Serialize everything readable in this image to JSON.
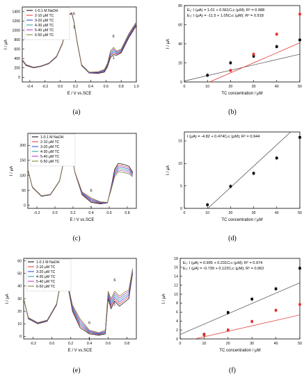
{
  "panels": [
    {
      "caption": "(a)",
      "type": "line",
      "xlabel": "E / V vs.SCE",
      "ylabel": "I / μA",
      "xlim": [
        -0.5,
        1.0
      ],
      "ylim": [
        -100,
        1500
      ],
      "xticks": [
        "-0.4",
        "-0.2",
        "0.0",
        "0.2",
        "0.4",
        "0.6",
        "0.8",
        "1.0"
      ],
      "yticks": [
        "0",
        "200",
        "400",
        "600",
        "800",
        "1000",
        "1200",
        "1400"
      ],
      "legend": [
        "1-0.1 M NaOH",
        "2-10 μM TC",
        "3-20 μM TC",
        "4-30 μM TC",
        "5-40 μM TC",
        "6-50 μM TC"
      ],
      "colors": [
        "#000000",
        "#e0302b",
        "#2b3be0",
        "#1a9a9a",
        "#b02cc0",
        "#7a7a20"
      ],
      "annotations": [
        "6",
        "1",
        "6",
        "1"
      ],
      "series": [
        {
          "name": "1-0.1 M NaOH",
          "x": [
            -0.5,
            -0.45,
            -0.35,
            -0.25,
            -0.15,
            -0.05,
            0.03,
            0.08,
            0.12,
            0.15,
            0.18,
            0.22,
            0.28,
            0.38,
            0.5,
            0.58,
            0.62,
            0.66,
            0.7,
            0.74,
            0.8,
            0.9,
            1.0
          ],
          "y": [
            360,
            250,
            200,
            230,
            290,
            430,
            720,
            1050,
            1330,
            1360,
            1180,
            760,
            250,
            90,
            80,
            110,
            220,
            420,
            480,
            470,
            520,
            840,
            1100
          ]
        },
        {
          "name": "6-50 μM TC",
          "x": [
            -0.5,
            -0.45,
            -0.35,
            -0.25,
            -0.15,
            -0.05,
            0.03,
            0.08,
            0.12,
            0.15,
            0.18,
            0.22,
            0.28,
            0.38,
            0.5,
            0.58,
            0.62,
            0.66,
            0.7,
            0.74,
            0.8,
            0.9,
            1.0
          ],
          "y": [
            380,
            270,
            215,
            245,
            305,
            450,
            740,
            1070,
            1350,
            1380,
            1200,
            780,
            270,
            110,
            120,
            170,
            300,
            560,
            640,
            560,
            600,
            930,
            1180
          ]
        }
      ]
    },
    {
      "caption": "(b)",
      "type": "scatter",
      "xlabel": "TC concentration / μM",
      "ylabel": "I / μA",
      "xlim": [
        0,
        50
      ],
      "ylim": [
        0,
        80
      ],
      "xticks": [
        "0",
        "10",
        "20",
        "30",
        "40",
        "50"
      ],
      "yticks": [
        "0",
        "20",
        "40",
        "60",
        "80"
      ],
      "equations": [
        "E₁: I (μA) = 1.01 + 0.561Cₜᴄ (μM);  R² = 0.988",
        "E₂: I (μA) = -11.5 + 1.05Cₜᴄ (μM);  R² = 0.918"
      ],
      "series": [
        {
          "name": "E₁",
          "color": "#000000",
          "x": [
            10,
            20,
            30,
            40,
            50
          ],
          "y": [
            7,
            20,
            27,
            37,
            44
          ],
          "fit": [
            1.01,
            0.561
          ]
        },
        {
          "name": "E₂",
          "color": "#e0302b",
          "x": [
            20,
            30,
            40,
            50
          ],
          "y": [
            12,
            29,
            50,
            71
          ],
          "fit": [
            -11.5,
            1.05
          ]
        }
      ]
    },
    {
      "caption": "(c)",
      "type": "line",
      "xlabel": "E / V vs.SCE",
      "ylabel": "I / μA",
      "xlim": [
        -0.3,
        0.9
      ],
      "ylim": [
        -10,
        240
      ],
      "xticks": [
        "-0.2",
        "0.0",
        "0.2",
        "0.4",
        "0.6",
        "0.8"
      ],
      "yticks": [
        "0",
        "50",
        "100",
        "150",
        "200"
      ],
      "legend": [
        "1-0.1 M NaOH",
        "2-10 μM TC",
        "3-20 μM TC",
        "4-30 μM TC",
        "5-40 μM TC",
        "6-50 μM TC"
      ],
      "colors": [
        "#000000",
        "#e0302b",
        "#2b3be0",
        "#1a9a9a",
        "#b02cc0",
        "#7a7a20"
      ],
      "annotations": [
        "6",
        "1"
      ],
      "series": [
        {
          "name": "1-0.1 M NaOH",
          "x": [
            -0.3,
            -0.25,
            -0.15,
            -0.05,
            0.05,
            0.1,
            0.14,
            0.18,
            0.22,
            0.3,
            0.4,
            0.5,
            0.58,
            0.62,
            0.66,
            0.7,
            0.74,
            0.78,
            0.82,
            0.86
          ],
          "y": [
            120,
            60,
            30,
            35,
            80,
            150,
            205,
            180,
            110,
            35,
            10,
            5,
            8,
            60,
            120,
            140,
            138,
            135,
            130,
            110
          ]
        },
        {
          "name": "6-50 μM TC",
          "x": [
            -0.3,
            -0.25,
            -0.15,
            -0.05,
            0.05,
            0.1,
            0.14,
            0.18,
            0.22,
            0.3,
            0.4,
            0.5,
            0.58,
            0.62,
            0.66,
            0.7,
            0.74,
            0.78,
            0.82,
            0.86
          ],
          "y": [
            120,
            62,
            32,
            37,
            82,
            152,
            207,
            182,
            112,
            45,
            25,
            12,
            10,
            50,
            95,
            112,
            110,
            108,
            105,
            95
          ]
        }
      ]
    },
    {
      "caption": "(d)",
      "type": "scatter",
      "xlabel": "TC concentration / μM",
      "ylabel": "I / μA",
      "xlim": [
        0,
        50
      ],
      "ylim": [
        0,
        17
      ],
      "xticks": [
        "0",
        "10",
        "20",
        "30",
        "40",
        "50"
      ],
      "yticks": [
        "0",
        "5",
        "10",
        "15"
      ],
      "equations": [
        "I (μA) = -4.82 + 0.474Cₜᴄ (μM);  R² = 0.944"
      ],
      "series": [
        {
          "name": "I",
          "color": "#000000",
          "x": [
            10,
            20,
            30,
            40,
            50
          ],
          "y": [
            0.8,
            4.9,
            7.8,
            11.2,
            15.8
          ],
          "fit": [
            -4.82,
            0.474
          ]
        }
      ]
    },
    {
      "caption": "(e)",
      "type": "line",
      "xlabel": "E / V vs.SCE",
      "ylabel": "I / μA",
      "xlim": [
        -0.3,
        0.9
      ],
      "ylim": [
        -2,
        62
      ],
      "xticks": [
        "-0.2",
        "0.0",
        "0.2",
        "0.4",
        "0.6",
        "0.8"
      ],
      "yticks": [
        "0",
        "10",
        "20",
        "30",
        "40",
        "50",
        "60"
      ],
      "legend": [
        "1-0.1 M NaOH",
        "2-10 μM TC",
        "3-20 μM TC",
        "4-30 μM TC",
        "5-40 μM TC",
        "6-50 μM TC"
      ],
      "colors": [
        "#000000",
        "#e0302b",
        "#2b3be0",
        "#1a9a9a",
        "#b02cc0",
        "#7a7a20"
      ],
      "annotations": [
        "6",
        "1",
        "6",
        "1"
      ],
      "series": [
        {
          "name": "1-0.1 M NaOH",
          "x": [
            -0.3,
            -0.25,
            -0.15,
            -0.05,
            0.05,
            0.1,
            0.13,
            0.17,
            0.22,
            0.3,
            0.4,
            0.5,
            0.57,
            0.6,
            0.63,
            0.67,
            0.72,
            0.77,
            0.82,
            0.86
          ],
          "y": [
            30,
            14,
            10,
            12,
            25,
            45,
            55,
            40,
            20,
            7,
            2,
            1,
            2,
            30,
            22,
            28,
            24,
            27,
            30,
            50
          ]
        },
        {
          "name": "6-50 μM TC",
          "x": [
            -0.3,
            -0.25,
            -0.15,
            -0.05,
            0.05,
            0.1,
            0.13,
            0.17,
            0.22,
            0.3,
            0.4,
            0.5,
            0.57,
            0.6,
            0.63,
            0.67,
            0.72,
            0.77,
            0.82,
            0.86
          ],
          "y": [
            30,
            15,
            11,
            13,
            26,
            46,
            57,
            42,
            25,
            14,
            5,
            3,
            5,
            36,
            30,
            36,
            32,
            35,
            37,
            54
          ]
        }
      ]
    },
    {
      "caption": "(f)",
      "type": "scatter",
      "xlabel": "TC concentration / μM",
      "ylabel": "I / μA",
      "xlim": [
        0,
        50
      ],
      "ylim": [
        0,
        18
      ],
      "xticks": [
        "0",
        "10",
        "20",
        "30",
        "40",
        "50"
      ],
      "yticks": [
        "0",
        "2",
        "4",
        "6",
        "8",
        "10",
        "12",
        "14",
        "16",
        "18"
      ],
      "equations": [
        "E₁: I (μA) = 0.995 + 0.231Cₜᴄ (μM);  R² = 0.974",
        "E₂: I (μA) = -0.739 + 0.122Cₜᴄ (μM);  R² = 0.962"
      ],
      "series": [
        {
          "name": "E₁",
          "color": "#000000",
          "x": [
            10,
            20,
            30,
            40,
            50
          ],
          "y": [
            1.0,
            5.9,
            8.9,
            11.2,
            15.8
          ],
          "fit": [
            0.995,
            0.231
          ]
        },
        {
          "name": "E₂",
          "color": "#e0302b",
          "x": [
            10,
            20,
            30,
            40,
            50
          ],
          "y": [
            0.9,
            2.0,
            3.9,
            6.4,
            7.7
          ],
          "fit": [
            -0.739,
            0.122
          ]
        }
      ]
    }
  ]
}
